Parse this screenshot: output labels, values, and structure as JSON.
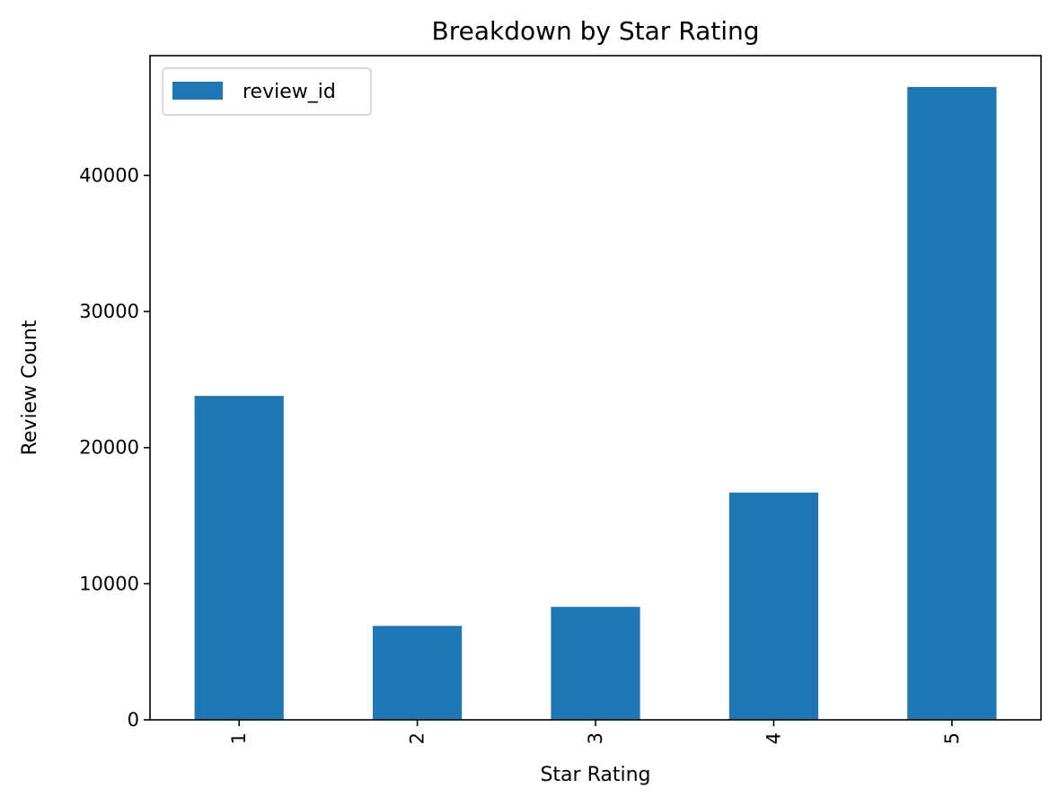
{
  "chart_data": {
    "type": "bar",
    "title": "Breakdown by Star Rating",
    "xlabel": "Star Rating",
    "ylabel": "Review Count",
    "categories": [
      "1",
      "2",
      "3",
      "4",
      "5"
    ],
    "series": [
      {
        "name": "review_id",
        "values": [
          23800,
          6900,
          8300,
          16700,
          46500
        ],
        "color": "#1f77b4"
      }
    ],
    "ylim": [
      0,
      48800
    ],
    "yticks": [
      0,
      10000,
      20000,
      30000,
      40000
    ],
    "ytick_labels": [
      "0",
      "10000",
      "20000",
      "30000",
      "40000"
    ],
    "xtick_rotation": 90,
    "grid": false,
    "legend_position": "top-left"
  }
}
